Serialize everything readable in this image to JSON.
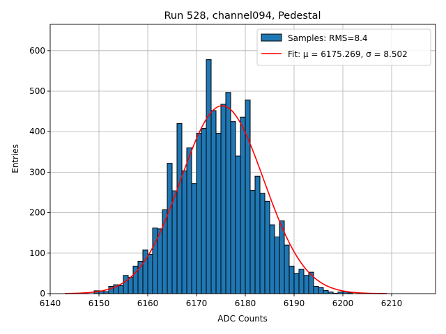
{
  "chart_data": {
    "type": "bar",
    "title": "Run 528, channel094, Pedestal",
    "xlabel": "ADC Counts",
    "ylabel": "Entries",
    "xlim": [
      6140,
      6219
    ],
    "ylim": [
      0,
      665
    ],
    "xticks": [
      6140,
      6150,
      6160,
      6170,
      6180,
      6190,
      6200,
      6210
    ],
    "yticks": [
      0,
      100,
      200,
      300,
      400,
      500,
      600
    ],
    "grid": true,
    "legend": "top-right",
    "colors": {
      "bars": "#1f77b4",
      "bar_edge": "#000000",
      "fit": "#ff0000",
      "grid": "#b0b0b0"
    },
    "series": [
      {
        "name": "Samples: RMS=8.4",
        "kind": "histogram",
        "bin_start": 6149,
        "bin_width": 1,
        "values": [
          7,
          7,
          5,
          18,
          22,
          20,
          45,
          40,
          68,
          80,
          108,
          97,
          162,
          160,
          207,
          322,
          254,
          420,
          303,
          360,
          272,
          396,
          408,
          578,
          452,
          396,
          468,
          497,
          425,
          340,
          436,
          478,
          255,
          290,
          248,
          228,
          170,
          140,
          180,
          120,
          68,
          50,
          60,
          45,
          53,
          18,
          15,
          8,
          4,
          1,
          4,
          5,
          2
        ]
      },
      {
        "name": "Fit: μ = 6175.269, σ = 8.502",
        "kind": "gaussian",
        "mu": 6175.269,
        "sigma": 8.502,
        "amplitude": 464,
        "x_range": [
          6143,
          6209
        ]
      }
    ]
  }
}
